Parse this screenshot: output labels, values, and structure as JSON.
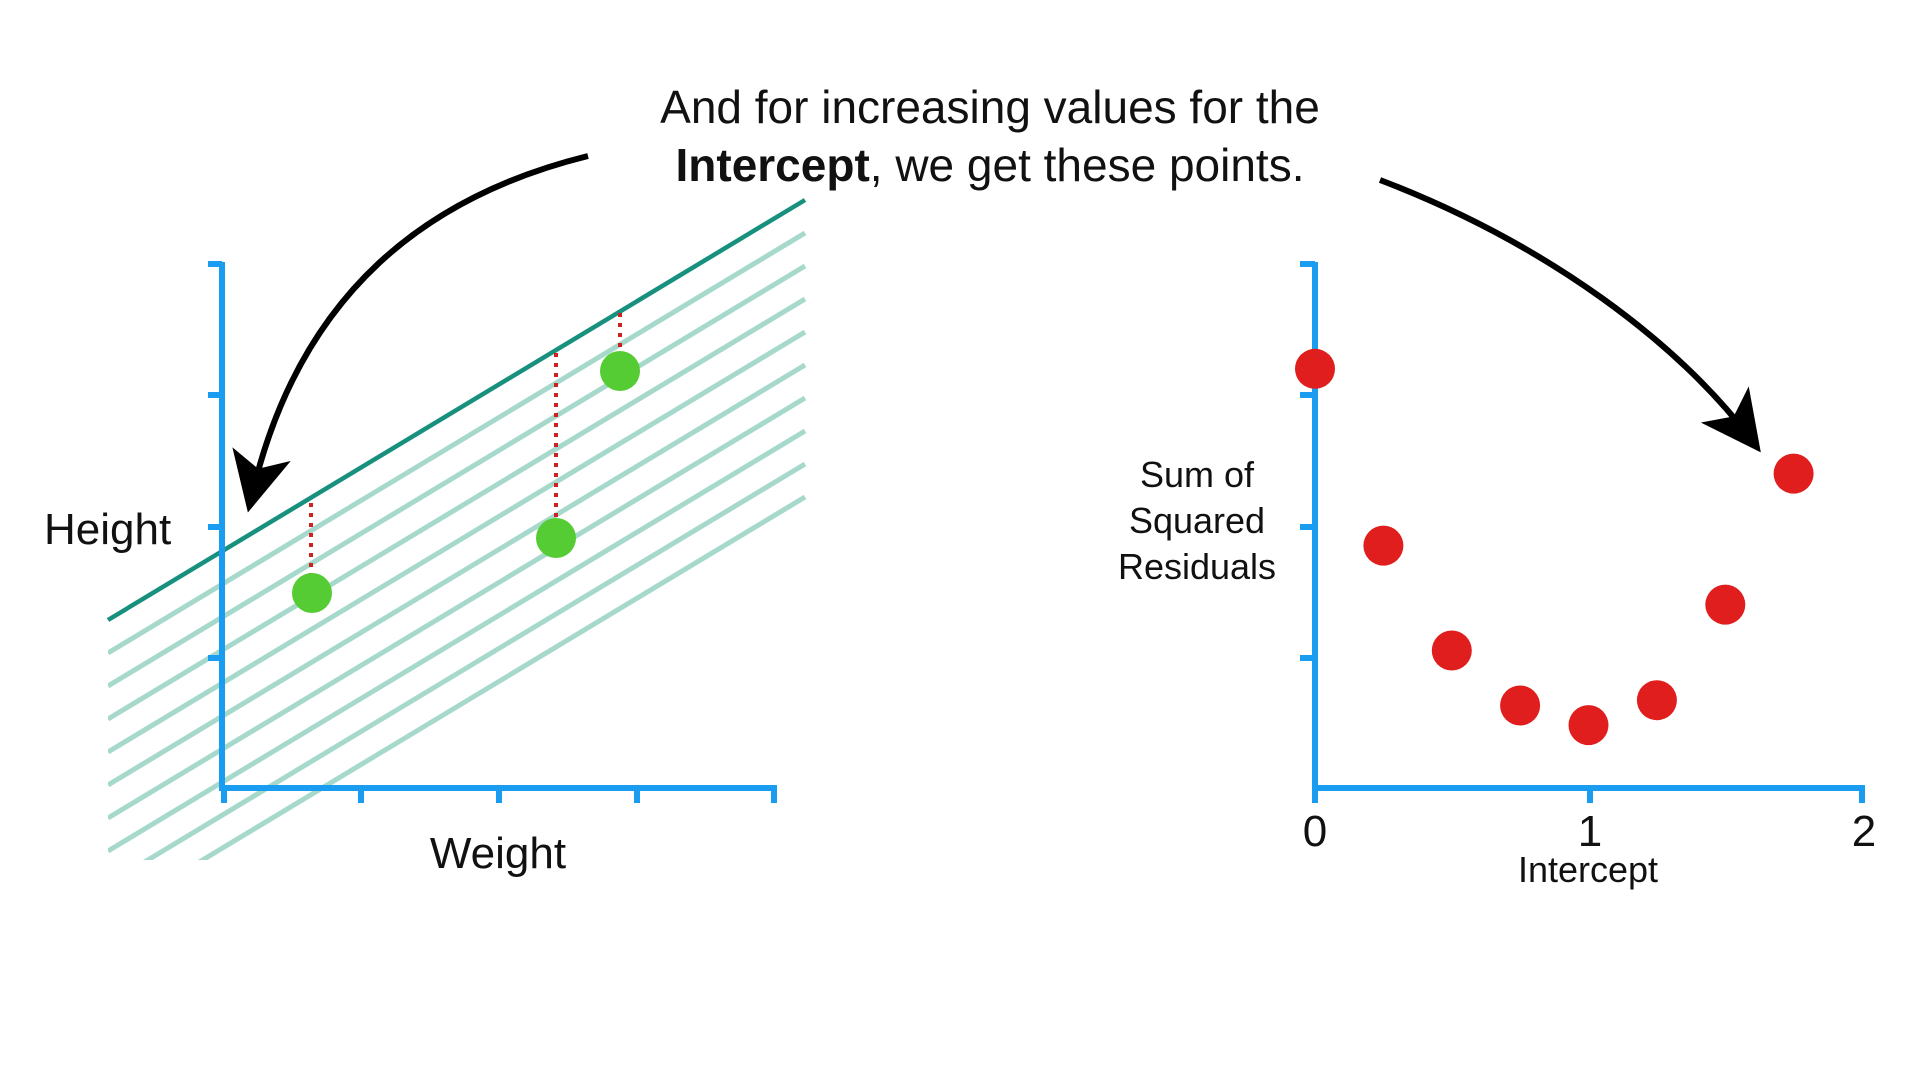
{
  "caption": {
    "line1": "And for increasing values for the",
    "line2_bold": "Intercept",
    "line2_rest": ", we get these points."
  },
  "left_plot": {
    "y_label": "Height",
    "x_label": "Weight"
  },
  "right_plot": {
    "y_label_lines": [
      "Sum of",
      "Squared",
      "Residuals"
    ],
    "x_label": "Intercept",
    "x_ticks": [
      "0",
      "1",
      "2"
    ]
  },
  "colors": {
    "axis": "#1a9cf0",
    "fit_line": "#17907e",
    "shifted_lines": "#a6d9cc",
    "observations": "#55cc33",
    "residuals": "#cc2222",
    "ssr_points": "#e01e1e",
    "arrow": "#000000"
  },
  "chart_data": {
    "type": "scatter",
    "x": [
      0,
      0.25,
      0.5,
      0.75,
      1.0,
      1.25,
      1.5,
      1.75
    ],
    "y": [
      3.2,
      1.85,
      1.05,
      0.63,
      0.48,
      0.67,
      1.4,
      2.4
    ],
    "xlim": [
      0,
      2
    ],
    "ylim": [
      0,
      4
    ],
    "xlabel": "Intercept",
    "ylabel": "Sum of Squared Residuals"
  }
}
